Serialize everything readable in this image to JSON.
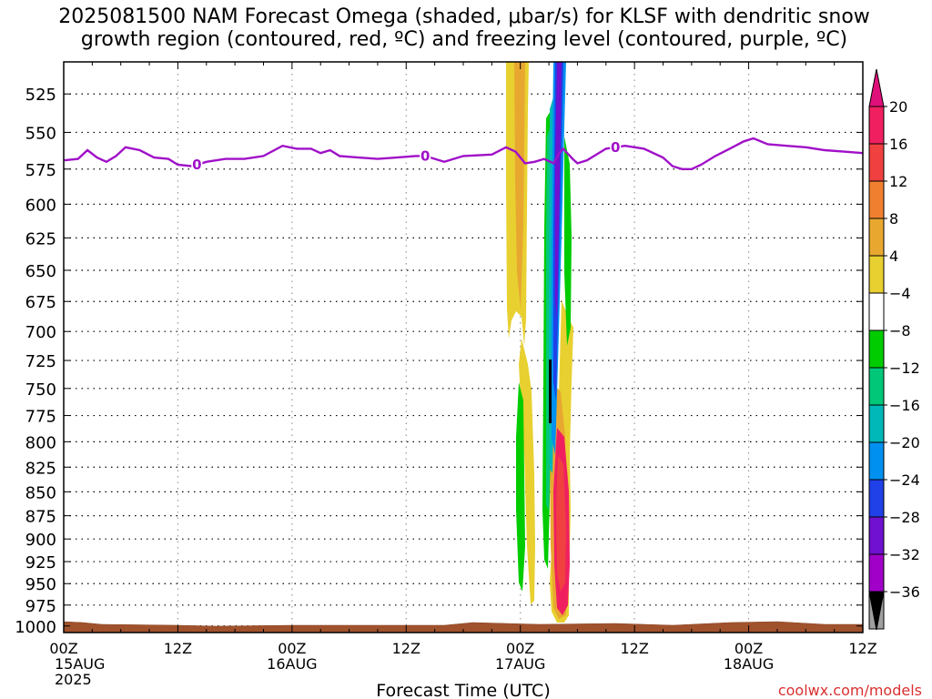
{
  "title_line1": "2025081500 NAM Forecast Omega (shaded, μbar/s) for KLSF with dendritic snow",
  "title_line2": "growth region (contoured, red, ºC) and freezing level (contoured, purple, ºC)",
  "credit": "coolwx.com/models",
  "chart_data": {
    "type": "time-height contour",
    "xlabel": "Forecast Time (UTC)",
    "ylabel": "",
    "x_ticks": [
      {
        "hours": 0,
        "line1": "00Z",
        "line2": "15AUG",
        "line3": "2025"
      },
      {
        "hours": 12,
        "line1": "12Z",
        "line2": "",
        "line3": ""
      },
      {
        "hours": 24,
        "line1": "00Z",
        "line2": "16AUG",
        "line3": ""
      },
      {
        "hours": 36,
        "line1": "12Z",
        "line2": "",
        "line3": ""
      },
      {
        "hours": 48,
        "line1": "00Z",
        "line2": "17AUG",
        "line3": ""
      },
      {
        "hours": 60,
        "line1": "12Z",
        "line2": "",
        "line3": ""
      },
      {
        "hours": 72,
        "line1": "00Z",
        "line2": "18AUG",
        "line3": ""
      },
      {
        "hours": 84,
        "line1": "12Z",
        "line2": "",
        "line3": ""
      }
    ],
    "xlim_hours": [
      0,
      84
    ],
    "y_pressure_levels": [
      525,
      550,
      575,
      600,
      625,
      650,
      675,
      700,
      725,
      750,
      775,
      800,
      825,
      850,
      875,
      900,
      925,
      950,
      975,
      1000
    ],
    "ylim_hpa": [
      505,
      1008
    ],
    "y_scale": "log-pressure, inverted",
    "grid": true,
    "colorbar": {
      "labels": [
        "20",
        "16",
        "12",
        "8",
        "4",
        "−4",
        "−8",
        "−12",
        "−16",
        "−20",
        "−24",
        "−28",
        "−32",
        "−36"
      ],
      "colors": [
        "#f02060",
        "#f04040",
        "#f08030",
        "#e8a830",
        "#e8d030",
        "#ffffff",
        "#00cc00",
        "#00c878",
        "#00b8b8",
        "#0090f0",
        "#2040e8",
        "#7010d0",
        "#a000c8",
        "#a0a0a0"
      ],
      "top_arrow_color": "#e0107a",
      "bottom_arrow_color": "#000000"
    },
    "freezing_level": {
      "name": "0",
      "color": "#a010c8",
      "label": "0",
      "points_hours_hpa": [
        [
          0,
          569
        ],
        [
          1.5,
          568
        ],
        [
          2.5,
          562
        ],
        [
          3.5,
          567
        ],
        [
          4.5,
          570
        ],
        [
          5.5,
          566
        ],
        [
          6.5,
          560
        ],
        [
          8,
          562
        ],
        [
          9.5,
          567
        ],
        [
          11,
          568
        ],
        [
          12,
          572
        ],
        [
          13.5,
          573
        ],
        [
          15,
          570
        ],
        [
          17,
          568
        ],
        [
          19,
          568
        ],
        [
          21,
          566
        ],
        [
          23,
          559
        ],
        [
          24.5,
          561
        ],
        [
          26,
          561
        ],
        [
          27,
          564
        ],
        [
          28,
          562
        ],
        [
          29,
          566
        ],
        [
          31,
          567
        ],
        [
          33,
          568
        ],
        [
          35,
          567
        ],
        [
          37,
          566
        ],
        [
          38,
          566
        ],
        [
          40,
          570
        ],
        [
          42,
          566
        ],
        [
          45,
          565
        ],
        [
          46.5,
          560
        ],
        [
          47.5,
          563
        ],
        [
          48.5,
          571
        ],
        [
          49.5,
          570
        ],
        [
          50.5,
          568
        ],
        [
          51.5,
          571
        ],
        [
          52,
          565
        ],
        [
          52.5,
          561
        ],
        [
          53.5,
          568
        ],
        [
          54,
          571
        ],
        [
          55,
          569
        ],
        [
          57,
          561
        ],
        [
          59,
          559
        ],
        [
          61,
          561
        ],
        [
          63,
          567
        ],
        [
          64,
          573
        ],
        [
          65,
          575
        ],
        [
          66,
          575
        ],
        [
          67,
          572
        ],
        [
          68.5,
          566
        ],
        [
          70,
          561
        ],
        [
          71.5,
          556
        ],
        [
          72.5,
          554
        ],
        [
          74,
          558
        ],
        [
          76,
          559
        ],
        [
          78,
          560
        ],
        [
          80,
          562
        ],
        [
          82,
          563
        ],
        [
          84,
          564
        ]
      ],
      "contour_labels_hours": [
        14,
        38,
        58
      ]
    },
    "terrain_top_hpa": 1000,
    "omega_features": [
      {
        "name": "ascent-core",
        "sign": "negative",
        "min_value": -36
      },
      {
        "name": "descent-core",
        "sign": "positive",
        "max_value": 20
      }
    ]
  }
}
